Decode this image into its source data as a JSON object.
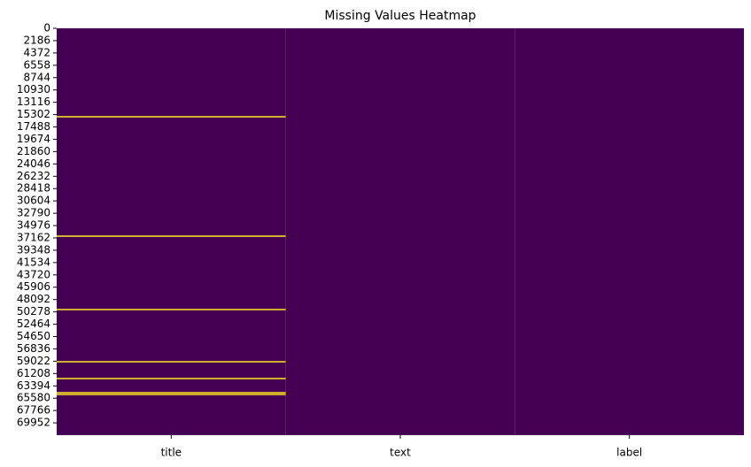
{
  "chart_data": {
    "type": "heatmap",
    "title": "Missing Values Heatmap",
    "categories": [
      "title",
      "text",
      "label"
    ],
    "ylim": [
      0,
      72134
    ],
    "y_inverted": true,
    "yticks": [
      0,
      2186,
      4372,
      6558,
      8744,
      10930,
      13116,
      15302,
      17488,
      19674,
      21860,
      24046,
      26232,
      28418,
      30604,
      32790,
      34976,
      37162,
      39348,
      41534,
      43720,
      45906,
      48092,
      50278,
      52464,
      54650,
      56836,
      59022,
      61208,
      63394,
      65580,
      67766,
      69952
    ],
    "missing": [
      [
        15681,
        36851,
        49866,
        59118,
        62098,
        64607,
        64920
      ],
      [],
      []
    ],
    "colors": {
      "present": "#440154",
      "missing": "#fde725"
    }
  }
}
